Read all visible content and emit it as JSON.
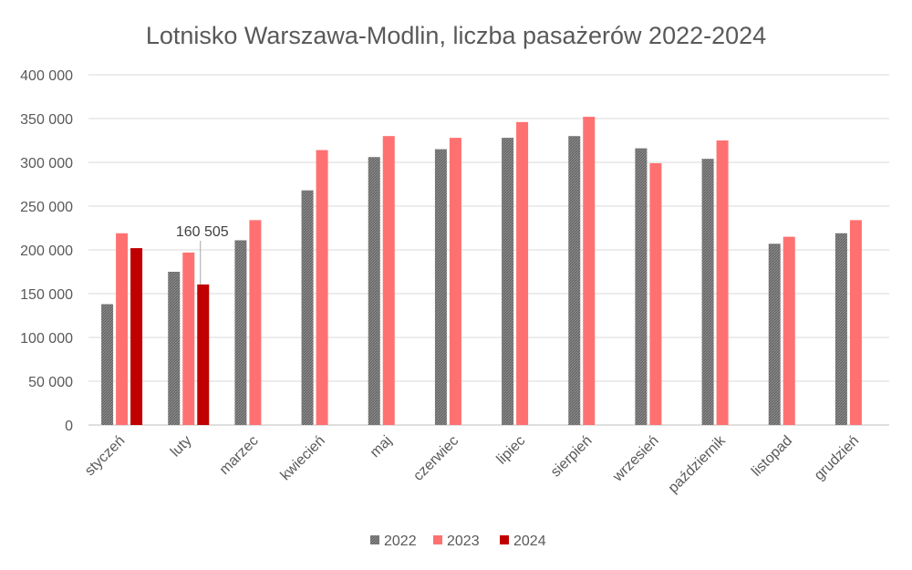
{
  "chart_data": {
    "type": "bar",
    "title": "Lotnisko Warszawa-Modlin, liczba pasażerów 2022-2024",
    "xlabel": "",
    "ylabel": "",
    "ylim": [
      0,
      400000
    ],
    "y_ticks": [
      0,
      50000,
      100000,
      150000,
      200000,
      250000,
      300000,
      350000,
      400000
    ],
    "y_tick_labels": [
      "0",
      "50 000",
      "100 000",
      "150 000",
      "200 000",
      "250 000",
      "300 000",
      "350 000",
      "400 000"
    ],
    "grid": true,
    "legend_position": "bottom",
    "categories": [
      "styczeń",
      "luty",
      "marzec",
      "kwiecień",
      "maj",
      "czerwiec",
      "lipiec",
      "sierpień",
      "wrzesień",
      "październik",
      "listopad",
      "grudzień"
    ],
    "series": [
      {
        "name": "2022",
        "color": "#808080",
        "pattern": "hatched",
        "values": [
          138000,
          175000,
          211000,
          268000,
          306000,
          315000,
          328000,
          330000,
          316000,
          304000,
          207000,
          219000
        ]
      },
      {
        "name": "2023",
        "color": "#FF7171",
        "values": [
          219000,
          197000,
          234000,
          314000,
          330000,
          328000,
          346000,
          352000,
          299000,
          325000,
          215000,
          234000
        ]
      },
      {
        "name": "2024",
        "color": "#C00000",
        "values": [
          202000,
          160505,
          null,
          null,
          null,
          null,
          null,
          null,
          null,
          null,
          null,
          null
        ]
      }
    ],
    "annotations": [
      {
        "series": "2024",
        "category": "luty",
        "label": "160 505"
      }
    ]
  }
}
